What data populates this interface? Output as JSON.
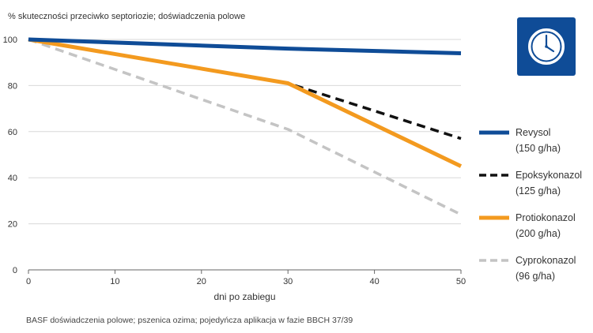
{
  "chart_data": {
    "type": "line",
    "title": "",
    "ylabel": "% skuteczności przeciwko septoriozie; doświadczenia polowe",
    "xlabel": "dni po zabiegu",
    "xlim": [
      0,
      50
    ],
    "ylim": [
      0,
      100
    ],
    "xticks": [
      "0",
      "10",
      "20",
      "30",
      "40",
      "50"
    ],
    "yticks": [
      "0",
      "20",
      "40",
      "60",
      "80",
      "100"
    ],
    "grid": true,
    "legend_position": "right",
    "series": [
      {
        "name": "Revysol",
        "dose": "(150 g/ha)",
        "x": [
          0,
          30,
          50
        ],
        "values": [
          100,
          96,
          94
        ],
        "color": "#0f4c97",
        "style": "solid"
      },
      {
        "name": "Epoksykonazol",
        "dose": "(125 g/ha)",
        "x": [
          0,
          30,
          50
        ],
        "values": [
          100,
          81,
          57
        ],
        "color": "#111111",
        "style": "dashed"
      },
      {
        "name": "Protiokonazol",
        "dose": "(200 g/ha)",
        "x": [
          0,
          30,
          50
        ],
        "values": [
          100,
          81,
          45
        ],
        "color": "#f39a1f",
        "style": "solid"
      },
      {
        "name": "Cyprokonazol",
        "dose": "(96 g/ha)",
        "x": [
          0,
          30,
          50
        ],
        "values": [
          100,
          61,
          24
        ],
        "color": "#c4c4c4",
        "style": "dashed"
      }
    ]
  },
  "footnote": "BASF doświadczenia polowe; pszenica ozima; pojedyńcza aplikacja w fazie BBCH 37/39",
  "icon": {
    "name": "clock-icon",
    "background": "#0f4c97"
  }
}
